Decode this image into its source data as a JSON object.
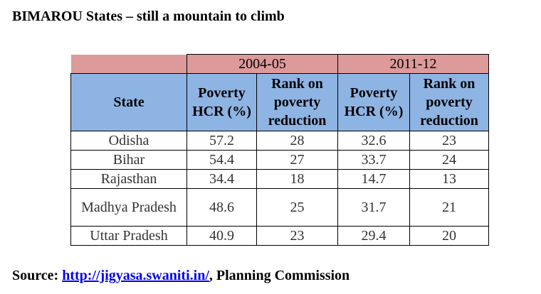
{
  "title": "BIMAROU States – still a mountain to climb",
  "table": {
    "years": [
      "2004-05",
      "2011-12"
    ],
    "headers": {
      "state": "State",
      "hcr": "Poverty HCR (%)",
      "rank": "Rank on poverty reduction"
    },
    "rows": [
      {
        "state": "Odisha",
        "hcr_2004": "57.2",
        "rank_2004": "28",
        "hcr_2011": "32.6",
        "rank_2011": "23"
      },
      {
        "state": "Bihar",
        "hcr_2004": "54.4",
        "rank_2004": "27",
        "hcr_2011": "33.7",
        "rank_2011": "24"
      },
      {
        "state": "Rajasthan",
        "hcr_2004": "34.4",
        "rank_2004": "18",
        "hcr_2011": "14.7",
        "rank_2011": "13"
      },
      {
        "state": "Madhya Pradesh",
        "hcr_2004": "48.6",
        "rank_2004": "25",
        "hcr_2011": "31.7",
        "rank_2011": "21"
      },
      {
        "state": "Uttar Pradesh",
        "hcr_2004": "40.9",
        "rank_2004": "23",
        "hcr_2011": "29.4",
        "rank_2011": "20"
      }
    ]
  },
  "source": {
    "label": "Source: ",
    "link_text": "http://jigyasa.swaniti.in/",
    "suffix": ", Planning Commission"
  },
  "colors": {
    "year_header_bg": "#dd9a9a",
    "column_header_bg": "#8eb4e3",
    "link": "#0000ee"
  }
}
